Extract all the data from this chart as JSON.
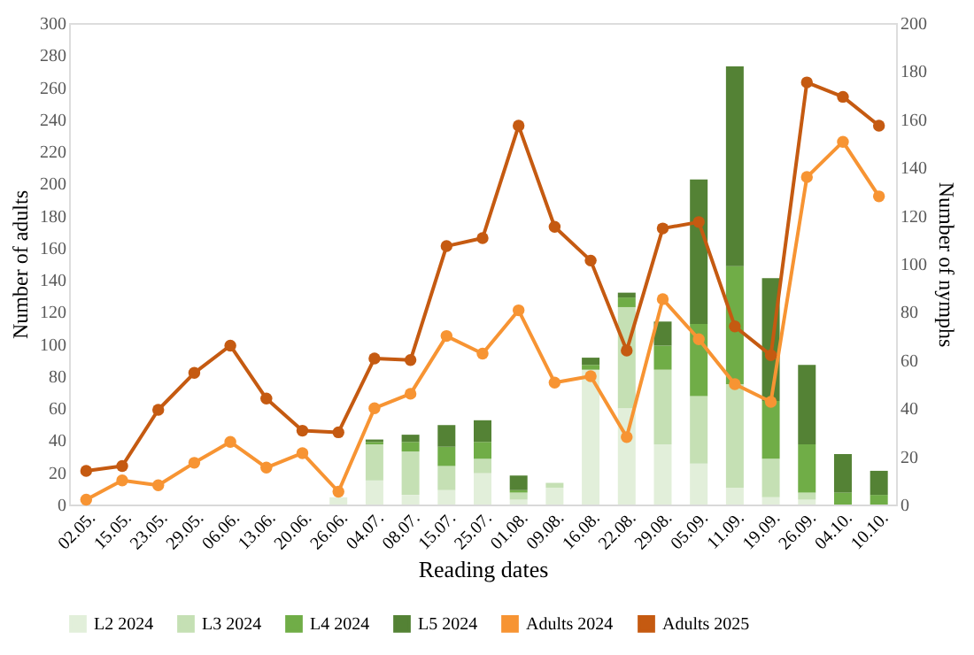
{
  "chart_data": {
    "type": "bar",
    "stacked": true,
    "xlabel": "Reading dates",
    "ylabel": "Number of adults",
    "y2label": "Number of nymphs",
    "categories": [
      "02.05.",
      "15.05.",
      "23.05.",
      "29.05.",
      "06.06.",
      "13.06.",
      "20.06.",
      "26.06.",
      "04.07.",
      "08.07.",
      "15.07.",
      "25.07.",
      "01.08.",
      "09.08.",
      "16.08.",
      "22.08.",
      "29.08.",
      "05.09.",
      "11.09.",
      "19.09.",
      "26.09.",
      "04.10.",
      "10.10."
    ],
    "series": [
      {
        "name": "L2 2024",
        "color": "#e2efda",
        "axis": "y2",
        "values": [
          null,
          null,
          null,
          null,
          null,
          null,
          null,
          3,
          10,
          4,
          6,
          13,
          2,
          7,
          56,
          40,
          25,
          17,
          7,
          3,
          2,
          0,
          0
        ]
      },
      {
        "name": "L3 2024",
        "color": "#c5e0b4",
        "axis": "y2",
        "values": [
          null,
          null,
          null,
          null,
          null,
          null,
          null,
          null,
          15,
          18,
          10,
          6,
          3,
          2,
          null,
          42,
          31,
          28,
          43,
          16,
          3,
          0,
          null
        ]
      },
      {
        "name": "L4 2024",
        "color": "#70ad47",
        "axis": "y2",
        "values": [
          null,
          null,
          null,
          null,
          null,
          null,
          null,
          0,
          1,
          4,
          8,
          7,
          1,
          0,
          2,
          4,
          10,
          30,
          49,
          24,
          20,
          5,
          4
        ]
      },
      {
        "name": "L5 2024",
        "color": "#548235",
        "axis": "y2",
        "values": [
          null,
          null,
          null,
          null,
          null,
          null,
          null,
          null,
          1,
          3,
          9,
          9,
          6,
          0,
          3,
          2,
          10,
          60,
          83,
          51,
          33,
          16,
          10
        ]
      },
      {
        "name": "Adults 2024",
        "color": "#f79433",
        "type": "line",
        "values": [
          3,
          15,
          12,
          26,
          39,
          23,
          32,
          8,
          60,
          69,
          105,
          94,
          121,
          76,
          80,
          42,
          128,
          103,
          75,
          64,
          204,
          226,
          192
        ]
      },
      {
        "name": "Adults 2025",
        "color": "#c55a11",
        "type": "line",
        "values": [
          21,
          24,
          59,
          82,
          99,
          66,
          46,
          45,
          91,
          90,
          161,
          166,
          236,
          173,
          152,
          96,
          172,
          176,
          111,
          93,
          263,
          254,
          236
        ]
      }
    ],
    "ylim": [
      0,
      300
    ],
    "yticks": [
      0,
      20,
      40,
      60,
      80,
      100,
      120,
      140,
      160,
      180,
      200,
      220,
      240,
      260,
      280,
      300
    ],
    "y2lim": [
      0,
      200
    ],
    "y2ticks": [
      0,
      20,
      40,
      60,
      80,
      100,
      120,
      140,
      160,
      180,
      200
    ],
    "marker": "circle",
    "grid": false,
    "legend": "bottom"
  }
}
